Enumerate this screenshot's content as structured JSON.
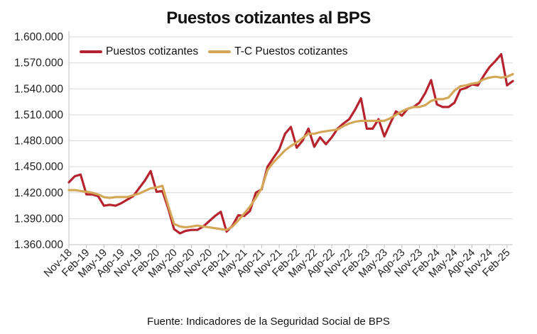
{
  "chart_data": {
    "type": "line",
    "title": "Puestos cotizantes al BPS",
    "xlabel": "",
    "ylabel": "",
    "ylim": [
      1360000,
      1600000
    ],
    "yticks": [
      1360000,
      1390000,
      1420000,
      1450000,
      1480000,
      1510000,
      1540000,
      1570000,
      1600000
    ],
    "ytick_labels": [
      "1.360.000",
      "1.390.000",
      "1.420.000",
      "1.450.000",
      "1.480.000",
      "1.510.000",
      "1.540.000",
      "1.570.000",
      "1.600.000"
    ],
    "x": [
      "Nov-18",
      "Dic-18",
      "Ene-19",
      "Feb-19",
      "Mar-19",
      "Abr-19",
      "May-19",
      "Jun-19",
      "Jul-19",
      "Ago-19",
      "Sep-19",
      "Oct-19",
      "Nov-19",
      "Dic-19",
      "Ene-20",
      "Feb-20",
      "Mar-20",
      "Abr-20",
      "May-20",
      "Jun-20",
      "Jul-20",
      "Ago-20",
      "Sep-20",
      "Oct-20",
      "Nov-20",
      "Dic-20",
      "Ene-21",
      "Feb-21",
      "Mar-21",
      "Abr-21",
      "May-21",
      "Jun-21",
      "Jul-21",
      "Ago-21",
      "Sep-21",
      "Oct-21",
      "Nov-21",
      "Dic-21",
      "Ene-22",
      "Feb-22",
      "Mar-22",
      "Abr-22",
      "May-22",
      "Jun-22",
      "Jul-22",
      "Ago-22",
      "Sep-22",
      "Oct-22",
      "Nov-22",
      "Dic-22",
      "Ene-23",
      "Feb-23",
      "Mar-23",
      "Abr-23",
      "May-23",
      "Jun-23",
      "Jul-23",
      "Ago-23",
      "Sep-23",
      "Oct-23",
      "Nov-23",
      "Dic-23",
      "Ene-24",
      "Feb-24",
      "Mar-24",
      "Abr-24",
      "May-24",
      "Jun-24",
      "Jul-24",
      "Ago-24",
      "Sep-24",
      "Oct-24",
      "Nov-24",
      "Dic-24",
      "Ene-25",
      "Feb-25",
      "Mar-25"
    ],
    "xtick_labels": [
      "Nov-18",
      "Feb-19",
      "May-19",
      "Ago-19",
      "Nov-19",
      "Feb-20",
      "May-20",
      "Ago-20",
      "Nov-20",
      "Feb-21",
      "May-21",
      "Ago-21",
      "Nov-21",
      "Feb-22",
      "May-22",
      "Ago-22",
      "Nov-22",
      "Feb-23",
      "May-23",
      "Ago-23",
      "Nov-23",
      "Feb-24",
      "May-24",
      "Ago-24",
      "Nov-24",
      "Feb-25"
    ],
    "xtick_every": 3,
    "series": [
      {
        "name": "Puestos cotizantes",
        "color": "#B5232E",
        "values": [
          1432000,
          1439000,
          1441000,
          1418000,
          1418000,
          1416000,
          1405000,
          1406000,
          1405000,
          1408000,
          1412000,
          1416000,
          1425000,
          1434000,
          1445000,
          1421000,
          1422000,
          1402000,
          1378000,
          1373000,
          1376000,
          1377000,
          1377000,
          1381000,
          1387000,
          1393000,
          1398000,
          1375000,
          1382000,
          1394000,
          1393000,
          1399000,
          1420000,
          1424000,
          1450000,
          1460000,
          1470000,
          1488000,
          1496000,
          1472000,
          1480000,
          1494000,
          1473000,
          1484000,
          1476000,
          1484000,
          1494000,
          1500000,
          1505000,
          1516000,
          1529000,
          1494000,
          1494000,
          1505000,
          1485000,
          1500000,
          1514000,
          1509000,
          1517000,
          1519000,
          1524000,
          1535000,
          1550000,
          1522000,
          1519000,
          1519000,
          1524000,
          1539000,
          1541000,
          1545000,
          1544000,
          1555000,
          1565000,
          1572000,
          1580000,
          1544000,
          1549000
        ]
      },
      {
        "name": "T-C Puestos cotizantes",
        "color": "#D4A657",
        "values": [
          1423000,
          1423000,
          1422000,
          1421000,
          1420000,
          1418000,
          1415000,
          1414000,
          1415000,
          1415000,
          1415000,
          1417000,
          1419000,
          1422000,
          1425000,
          1426000,
          1428000,
          1405000,
          1384000,
          1381000,
          1380000,
          1381000,
          1382000,
          1381000,
          1380000,
          1379000,
          1378000,
          1377000,
          1381000,
          1388000,
          1396000,
          1404000,
          1414000,
          1425000,
          1446000,
          1455000,
          1462000,
          1469000,
          1474000,
          1478000,
          1483000,
          1488000,
          1488000,
          1490000,
          1491000,
          1492000,
          1493000,
          1497000,
          1500000,
          1502000,
          1503000,
          1503000,
          1503000,
          1503000,
          1503000,
          1506000,
          1510000,
          1514000,
          1517000,
          1519000,
          1519000,
          1521000,
          1526000,
          1528000,
          1528000,
          1530000,
          1538000,
          1543000,
          1544000,
          1546000,
          1547000,
          1551000,
          1553000,
          1554000,
          1553000,
          1554000,
          1557000
        ]
      }
    ],
    "grid": "horizontal",
    "legend_position": "top-left",
    "source": "Fuente: Indicadores de la Seguridad Social de BPS"
  }
}
